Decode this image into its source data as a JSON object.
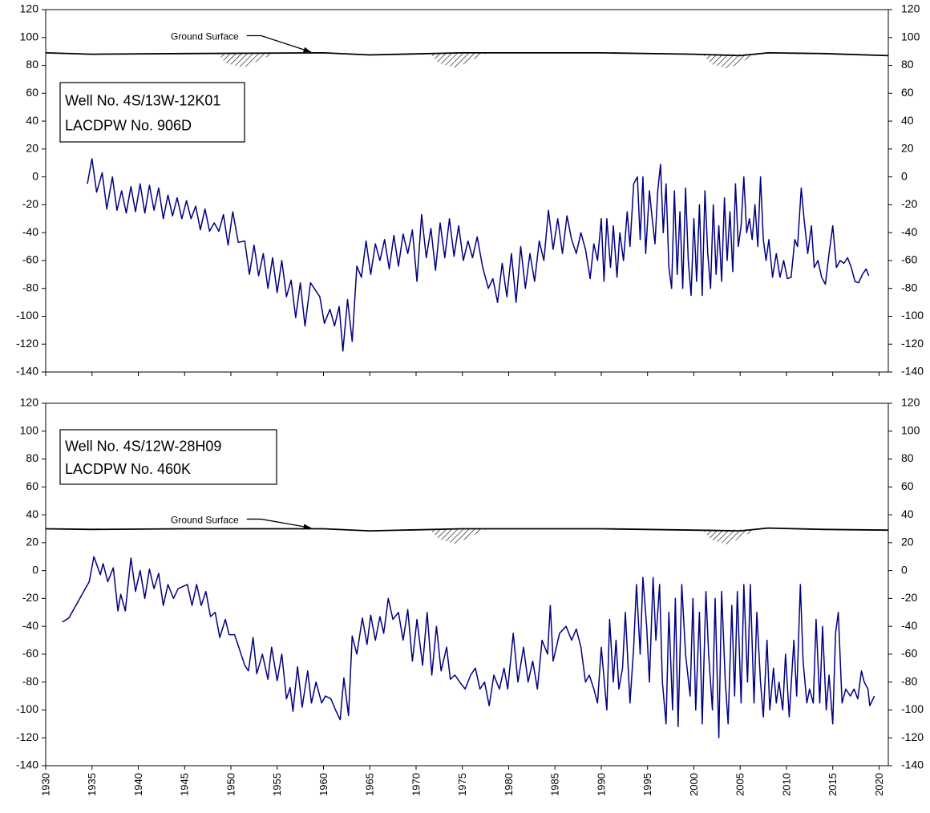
{
  "chart_data": [
    {
      "type": "line",
      "title_lines": [
        "Well No. 4S/13W-12K01",
        "LACDPW No. 906D"
      ],
      "color": "#000080",
      "x": [
        1934.5,
        1935,
        1935.5,
        1936.1,
        1936.6,
        1937.2,
        1937.7,
        1938.2,
        1938.7,
        1939.2,
        1939.7,
        1940.2,
        1940.7,
        1941.2,
        1941.7,
        1942.2,
        1942.7,
        1943.2,
        1943.7,
        1944.2,
        1944.7,
        1945.2,
        1945.7,
        1946.2,
        1946.7,
        1947.2,
        1947.7,
        1948.2,
        1948.7,
        1949.2,
        1949.7,
        1950.2,
        1950.8,
        1951.5,
        1952,
        1952.5,
        1953,
        1953.5,
        1954,
        1954.5,
        1955,
        1955.5,
        1956,
        1956.5,
        1957,
        1957.5,
        1958,
        1958.6,
        1959.6,
        1960.1,
        1960.7,
        1961.2,
        1961.7,
        1962.1,
        1962.6,
        1963.1,
        1963.6,
        1964.1,
        1964.6,
        1965.1,
        1965.6,
        1966.1,
        1966.6,
        1967.1,
        1967.6,
        1968.1,
        1968.6,
        1969.1,
        1969.6,
        1970.1,
        1970.6,
        1971.1,
        1971.6,
        1972.1,
        1972.6,
        1973.1,
        1973.6,
        1974.1,
        1974.6,
        1975.1,
        1975.6,
        1976.1,
        1976.6,
        1977.2,
        1977.8,
        1978.3,
        1978.8,
        1979.3,
        1979.8,
        1980.3,
        1980.8,
        1981.3,
        1981.8,
        1982.3,
        1982.8,
        1983.3,
        1983.8,
        1984.3,
        1984.8,
        1985.3,
        1985.8,
        1986.3,
        1986.8,
        1987.3,
        1987.8,
        1988.3,
        1988.8,
        1989.2,
        1989.6,
        1990,
        1990.3,
        1990.6,
        1991,
        1991.3,
        1991.7,
        1992,
        1992.4,
        1992.8,
        1993.1,
        1993.5,
        1993.9,
        1994.2,
        1994.5,
        1994.8,
        1995.2,
        1995.5,
        1995.8,
        1996.1,
        1996.4,
        1996.7,
        1997,
        1997.3,
        1997.6,
        1997.9,
        1998.2,
        1998.5,
        1998.8,
        1999.1,
        1999.4,
        1999.7,
        2000,
        2000.3,
        2000.6,
        2000.9,
        2001.2,
        2001.5,
        2001.8,
        2002.1,
        2002.4,
        2002.7,
        2003,
        2003.3,
        2003.6,
        2003.9,
        2004.2,
        2004.5,
        2004.8,
        2005.1,
        2005.4,
        2005.7,
        2006,
        2006.3,
        2006.6,
        2006.9,
        2007.2,
        2007.5,
        2007.8,
        2008.1,
        2008.5,
        2008.9,
        2009.3,
        2009.7,
        2010.1,
        2010.5,
        2010.9,
        2011.2,
        2011.6,
        2011.9,
        2012.3,
        2012.7,
        2013,
        2013.4,
        2013.8,
        2014.2,
        2014.6,
        2015,
        2015.4,
        2015.8,
        2016.2,
        2016.6,
        2017,
        2017.4,
        2017.8,
        2018.2,
        2018.6,
        2018.9
      ],
      "values": [
        -5,
        13,
        -11,
        3,
        -23,
        0,
        -24,
        -10,
        -26,
        -7,
        -25,
        -5,
        -26,
        -6,
        -24,
        -8,
        -30,
        -13,
        -28,
        -15,
        -30,
        -17,
        -30,
        -21,
        -38,
        -23,
        -39,
        -33,
        -39,
        -27,
        -49,
        -25,
        -47,
        -46,
        -70,
        -49,
        -71,
        -55,
        -80,
        -58,
        -83,
        -60,
        -86,
        -74,
        -101,
        -76,
        -107,
        -76,
        -86,
        -105,
        -95,
        -107,
        -93,
        -125,
        -88,
        -118,
        -64,
        -72,
        -46,
        -70,
        -48,
        -60,
        -45,
        -66,
        -42,
        -64,
        -41,
        -55,
        -38,
        -75,
        -27,
        -58,
        -37,
        -67,
        -33,
        -58,
        -30,
        -57,
        -35,
        -60,
        -46,
        -58,
        -43,
        -65,
        -80,
        -73,
        -90,
        -62,
        -86,
        -55,
        -90,
        -50,
        -80,
        -55,
        -75,
        -46,
        -60,
        -24,
        -52,
        -30,
        -55,
        -28,
        -45,
        -55,
        -40,
        -52,
        -73,
        -48,
        -60,
        -30,
        -75,
        -30,
        -65,
        -35,
        -72,
        -40,
        -60,
        -25,
        -50,
        -5,
        0,
        -45,
        0,
        -55,
        -10,
        -30,
        -48,
        -10,
        9,
        -40,
        -5,
        -65,
        -80,
        -10,
        -70,
        -25,
        -80,
        -8,
        -60,
        -85,
        -30,
        -75,
        -20,
        -85,
        -10,
        -55,
        -80,
        -20,
        -70,
        -35,
        -75,
        -15,
        -60,
        -25,
        -68,
        -5,
        -50,
        -35,
        0,
        -40,
        -30,
        -45,
        -20,
        -50,
        0,
        -45,
        -60,
        -45,
        -72,
        -55,
        -72,
        -60,
        -73,
        -72,
        -45,
        -50,
        -8,
        -30,
        -55,
        -35,
        -65,
        -60,
        -72,
        -77,
        -55,
        -35,
        -65,
        -60,
        -62,
        -58,
        -65,
        -75,
        -76,
        -70,
        -66,
        -71
      ],
      "ground_surface": {
        "label": "Ground Surface",
        "x": [
          1930,
          1935,
          1945,
          1960,
          1965,
          1975,
          1990,
          2000,
          2005,
          2008,
          2014,
          2021
        ],
        "values": [
          89,
          88,
          88.5,
          89,
          87.5,
          89,
          89,
          88,
          87,
          89,
          88.5,
          87
        ]
      },
      "xlim": [
        1930,
        2021
      ],
      "xticks": [
        1930,
        1935,
        1940,
        1945,
        1950,
        1955,
        1960,
        1965,
        1970,
        1975,
        1980,
        1985,
        1990,
        1995,
        2000,
        2005,
        2010,
        2015,
        2020
      ],
      "show_xtick_labels": false,
      "ylim": [
        -140,
        120
      ],
      "yticks": [
        -140,
        -120,
        -100,
        -80,
        -60,
        -40,
        -20,
        0,
        20,
        40,
        60,
        80,
        100,
        120
      ],
      "y2lim": [
        -140,
        120
      ],
      "y2ticks": [
        -140,
        -120,
        -100,
        -80,
        -60,
        -40,
        -20,
        0,
        20,
        40,
        60,
        80,
        100,
        120
      ]
    },
    {
      "type": "line",
      "title_lines": [
        "Well No. 4S/12W-28H09",
        "LACDPW No. 460K"
      ],
      "color": "#000080",
      "x": [
        1931.8,
        1932.5,
        1934.7,
        1935.2,
        1935.9,
        1936.2,
        1936.7,
        1937.3,
        1937.8,
        1938.1,
        1938.6,
        1939.2,
        1939.7,
        1940.2,
        1940.7,
        1941.2,
        1941.7,
        1942.2,
        1942.7,
        1943.2,
        1943.8,
        1944.3,
        1945.3,
        1945.8,
        1946.3,
        1946.8,
        1947.3,
        1947.8,
        1948.3,
        1948.8,
        1949.4,
        1949.8,
        1950.4,
        1951.1,
        1951.5,
        1951.9,
        1952.4,
        1952.8,
        1953.4,
        1954,
        1954.4,
        1955,
        1955.5,
        1956,
        1956.4,
        1956.7,
        1957.2,
        1957.7,
        1958.3,
        1958.7,
        1959.2,
        1959.8,
        1960.2,
        1960.8,
        1961.3,
        1961.8,
        1962.2,
        1962.7,
        1963.1,
        1963.6,
        1964.2,
        1964.7,
        1965.1,
        1965.6,
        1966.1,
        1966.5,
        1967,
        1967.5,
        1968.1,
        1968.6,
        1969.1,
        1969.6,
        1970.1,
        1970.7,
        1971.2,
        1971.7,
        1972.2,
        1972.7,
        1973.3,
        1973.7,
        1974.2,
        1974.7,
        1975.3,
        1975.9,
        1976.4,
        1976.9,
        1977.4,
        1977.9,
        1978.4,
        1979,
        1979.5,
        1979.9,
        1980.5,
        1981,
        1981.6,
        1982.1,
        1982.6,
        1983.1,
        1983.6,
        1984.2,
        1984.5,
        1984.8,
        1985.5,
        1986.2,
        1986.8,
        1987.3,
        1987.8,
        1988.3,
        1988.7,
        1989.2,
        1989.6,
        1990,
        1990.6,
        1990.9,
        1991.3,
        1991.6,
        1991.9,
        1992.3,
        1992.6,
        1993.1,
        1993.5,
        1993.8,
        1994.2,
        1994.5,
        1994.9,
        1995.2,
        1995.6,
        1995.9,
        1996.3,
        1996.6,
        1997,
        1997.3,
        1997.7,
        1998,
        1998.3,
        1998.7,
        1999.1,
        1999.6,
        1999.9,
        2000.2,
        2000.6,
        2000.9,
        2001.3,
        2001.6,
        2002,
        2002.3,
        2002.7,
        2003,
        2003.4,
        2003.7,
        2004.1,
        2004.4,
        2004.7,
        2005.1,
        2005.4,
        2005.8,
        2006.1,
        2006.5,
        2006.8,
        2007.2,
        2007.5,
        2007.9,
        2008.2,
        2008.6,
        2008.9,
        2009.2,
        2009.6,
        2009.9,
        2010.3,
        2010.8,
        2011.1,
        2011.5,
        2011.8,
        2012.2,
        2012.5,
        2012.9,
        2013.2,
        2013.6,
        2013.9,
        2014.3,
        2014.6,
        2015,
        2015.3,
        2015.6,
        2016,
        2016.4,
        2016.9,
        2017.3,
        2017.7,
        2018.1,
        2018.4,
        2018.8,
        2019,
        2019.5
      ],
      "values": [
        -37,
        -34,
        -8,
        10,
        -3,
        5,
        -8,
        2,
        -29,
        -17,
        -29,
        9,
        -15,
        0,
        -20,
        1,
        -13,
        -2,
        -25,
        -10,
        -20,
        -13,
        -10,
        -25,
        -10,
        -25,
        -15,
        -33,
        -30,
        -48,
        -35,
        -46,
        -46,
        -60,
        -68,
        -72,
        -48,
        -74,
        -60,
        -78,
        -55,
        -79,
        -60,
        -92,
        -84,
        -101,
        -69,
        -98,
        -72,
        -95,
        -80,
        -95,
        -90,
        -92,
        -100,
        -107,
        -77,
        -104,
        -47,
        -60,
        -34,
        -53,
        -32,
        -50,
        -33,
        -45,
        -20,
        -35,
        -30,
        -50,
        -28,
        -65,
        -35,
        -68,
        -30,
        -75,
        -40,
        -72,
        -55,
        -78,
        -75,
        -80,
        -85,
        -75,
        -70,
        -85,
        -80,
        -97,
        -75,
        -85,
        -70,
        -85,
        -45,
        -80,
        -55,
        -80,
        -65,
        -85,
        -50,
        -60,
        -25,
        -65,
        -45,
        -40,
        -50,
        -42,
        -55,
        -80,
        -75,
        -85,
        -95,
        -55,
        -100,
        -35,
        -80,
        -50,
        -85,
        -70,
        -30,
        -95,
        -55,
        -10,
        -60,
        -5,
        -40,
        -80,
        -5,
        -50,
        -10,
        -80,
        -110,
        -30,
        -100,
        -20,
        -112,
        -10,
        -60,
        -90,
        -20,
        -100,
        -30,
        -110,
        -15,
        -60,
        -100,
        -20,
        -120,
        -15,
        -80,
        -110,
        -25,
        -90,
        -15,
        -95,
        -10,
        -80,
        -10,
        -95,
        -30,
        -80,
        -105,
        -50,
        -100,
        -70,
        -95,
        -80,
        -100,
        -60,
        -105,
        -50,
        -90,
        -10,
        -65,
        -95,
        -85,
        -95,
        -35,
        -95,
        -40,
        -100,
        -75,
        -110,
        -45,
        -30,
        -95,
        -85,
        -90,
        -85,
        -92,
        -72,
        -80,
        -85,
        -97,
        -90
      ],
      "ground_surface": {
        "label": "Ground Surface",
        "x": [
          1930,
          1935,
          1945,
          1960,
          1965,
          1975,
          1990,
          2000,
          2005,
          2008,
          2014,
          2021
        ],
        "values": [
          30,
          29.5,
          30,
          30,
          28.5,
          30,
          30,
          29,
          28.5,
          30.5,
          29.5,
          29
        ]
      },
      "xlim": [
        1930,
        2021
      ],
      "xticks": [
        1930,
        1935,
        1940,
        1945,
        1950,
        1955,
        1960,
        1965,
        1970,
        1975,
        1980,
        1985,
        1990,
        1995,
        2000,
        2005,
        2010,
        2015,
        2020
      ],
      "show_xtick_labels": true,
      "ylim": [
        -140,
        120
      ],
      "yticks": [
        -140,
        -120,
        -100,
        -80,
        -60,
        -40,
        -20,
        0,
        20,
        40,
        60,
        80,
        100,
        120
      ],
      "y2lim": [
        -140,
        120
      ],
      "y2ticks": [
        -140,
        -120,
        -100,
        -80,
        -60,
        -40,
        -20,
        0,
        20,
        40,
        60,
        80,
        100,
        120
      ]
    }
  ]
}
